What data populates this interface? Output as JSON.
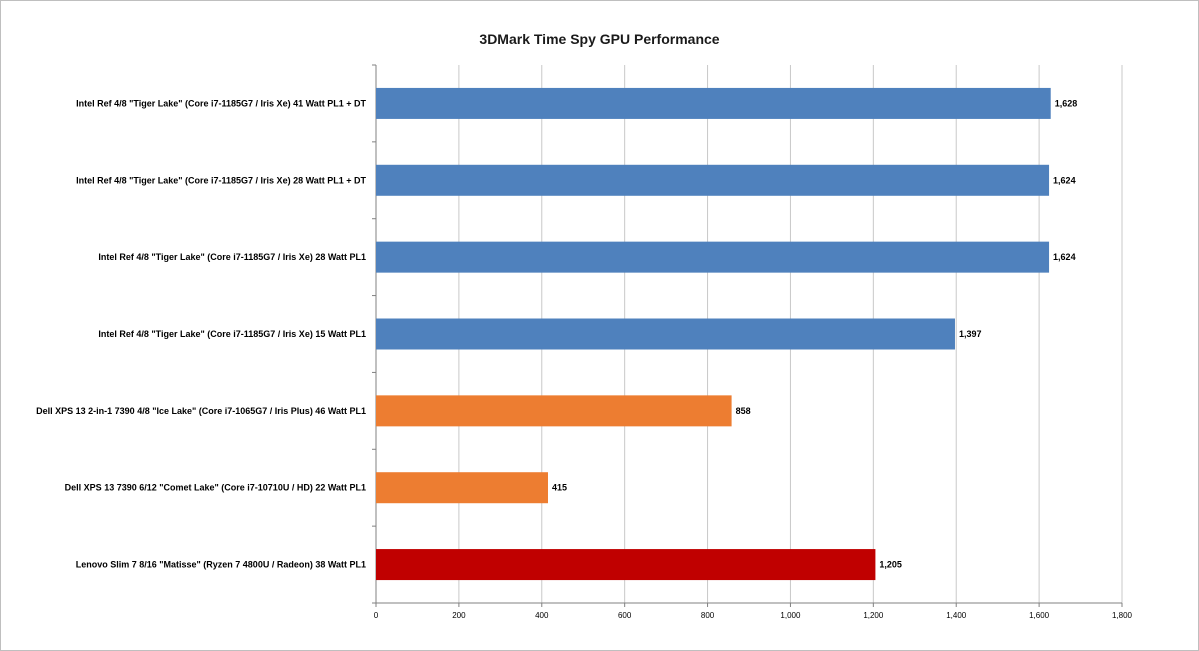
{
  "chart_data": {
    "type": "bar",
    "orientation": "horizontal",
    "title": "3DMark Time Spy GPU Performance",
    "xlabel": "",
    "ylabel": "",
    "xlim": [
      0,
      1800
    ],
    "xticks": [
      0,
      200,
      400,
      600,
      800,
      1000,
      1200,
      1400,
      1600,
      1800
    ],
    "xtick_labels": [
      "0",
      "200",
      "400",
      "600",
      "800",
      "1,000",
      "1,200",
      "1,400",
      "1,600",
      "1,800"
    ],
    "grid": true,
    "legend": "none",
    "categories": [
      "Intel Ref 4/8 \"Tiger Lake\" (Core i7-1185G7 / Iris Xe) 41 Watt PL1 + DT",
      "Intel Ref 4/8 \"Tiger Lake\" (Core i7-1185G7 / Iris Xe) 28 Watt PL1 + DT",
      "Intel Ref 4/8 \"Tiger Lake\" (Core i7-1185G7 / Iris Xe) 28 Watt PL1",
      "Intel Ref 4/8 \"Tiger Lake\" (Core i7-1185G7 / Iris Xe) 15 Watt PL1",
      "Dell XPS 13 2-in-1 7390 4/8 \"Ice Lake\" (Core i7-1065G7 / Iris Plus) 46 Watt PL1",
      "Dell XPS 13 7390 6/12 \"Comet Lake\" (Core i7-10710U / HD) 22 Watt PL1",
      "Lenovo Slim 7 8/16 \"Matisse\" (Ryzen 7 4800U / Radeon) 38 Watt PL1"
    ],
    "values": [
      1628,
      1624,
      1624,
      1397,
      858,
      415,
      1205
    ],
    "value_labels": [
      "1,628",
      "1,624",
      "1,624",
      "1,397",
      "858",
      "415",
      "1,205"
    ],
    "bar_colors": [
      "#4f81bd",
      "#4f81bd",
      "#4f81bd",
      "#4f81bd",
      "#ed7d31",
      "#ed7d31",
      "#c00000"
    ]
  },
  "colors": {
    "gridline": "#c8c8c8",
    "axis": "#808080"
  }
}
